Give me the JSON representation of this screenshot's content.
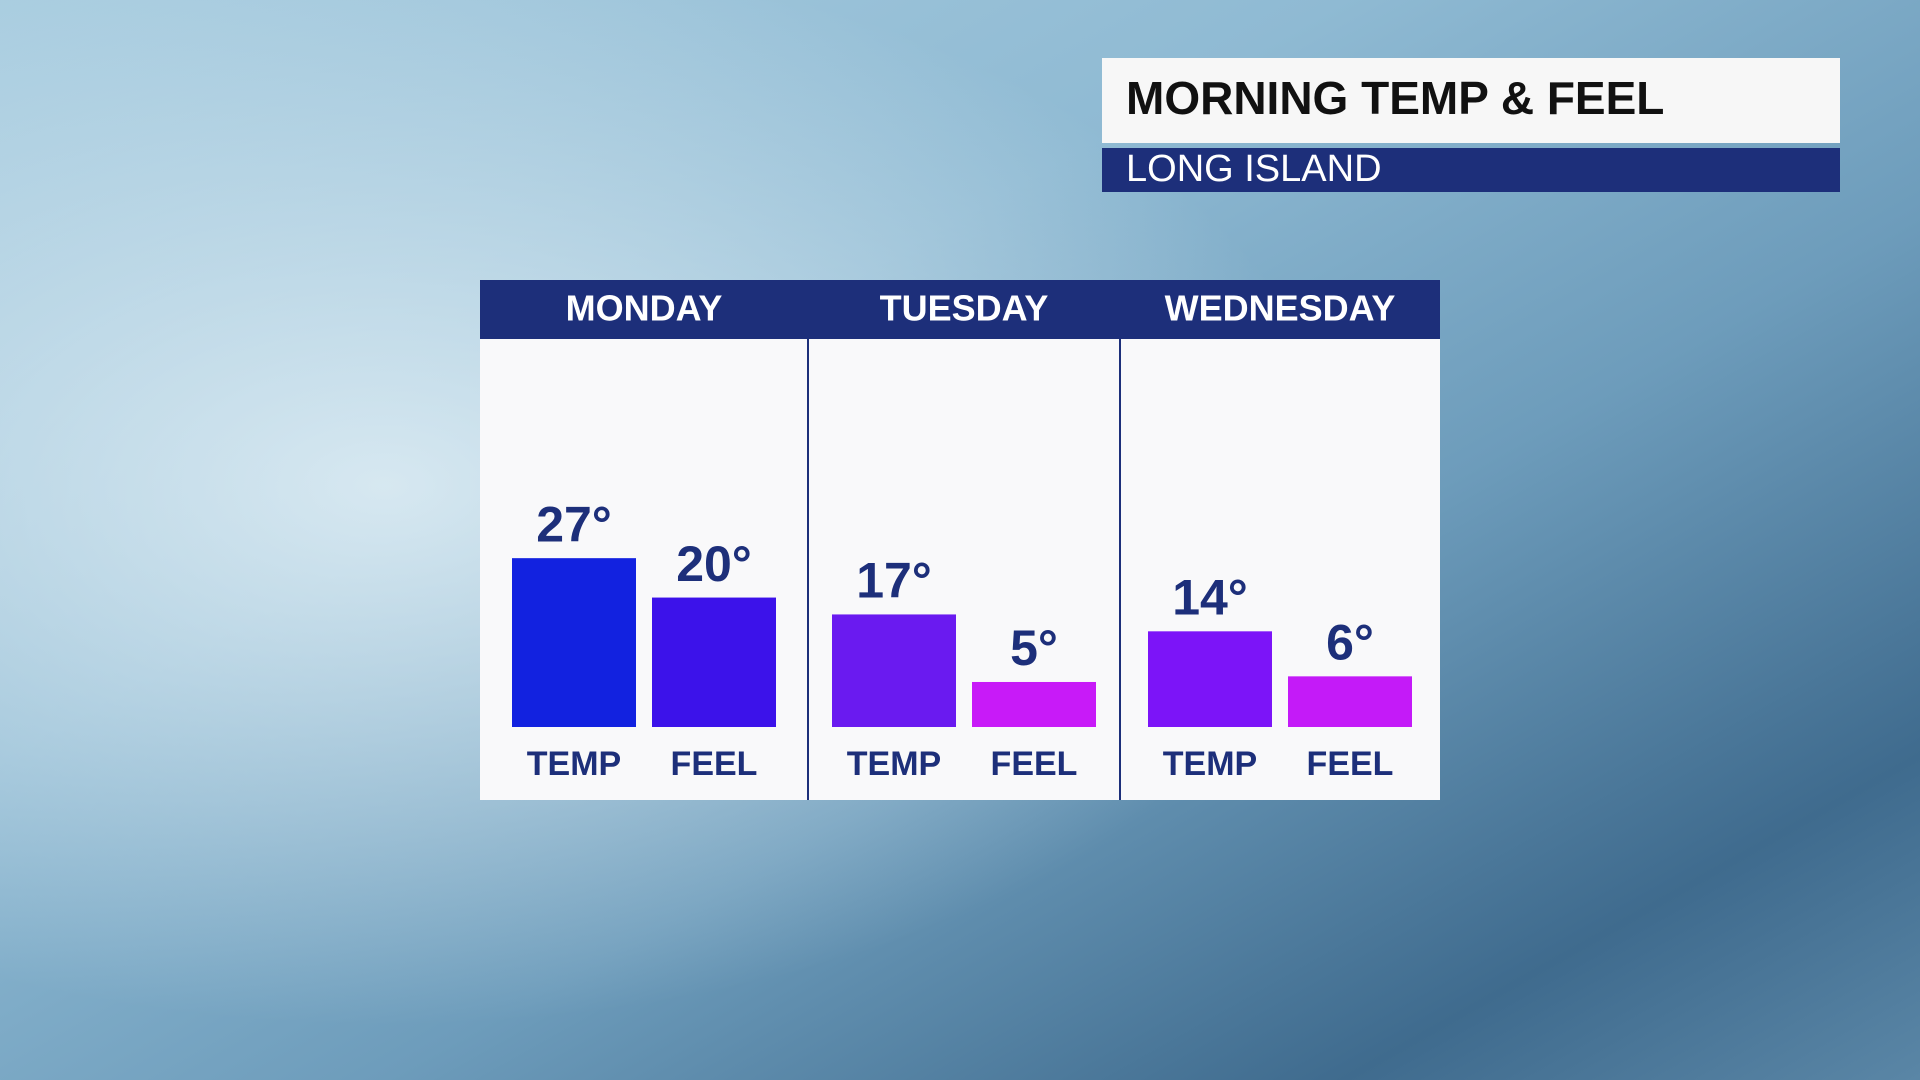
{
  "chart_data": {
    "type": "bar",
    "title": "MORNING TEMP & FEEL",
    "subtitle": "LONG ISLAND",
    "categories": [
      "MONDAY",
      "TUESDAY",
      "WEDNESDAY"
    ],
    "series": [
      {
        "name": "TEMP",
        "values": [
          27,
          17,
          14
        ],
        "value_labels": [
          "27°",
          "17°",
          "14°"
        ],
        "colors": [
          "#1222e0",
          "#6a1af0",
          "#7c14f8"
        ]
      },
      {
        "name": "FEEL",
        "values": [
          20,
          5,
          6
        ],
        "value_labels": [
          "20°",
          "5°",
          "6°"
        ],
        "colors": [
          "#3c12ea",
          "#c81af8",
          "#c41af8"
        ]
      }
    ],
    "ylim": [
      -3,
      40
    ]
  }
}
